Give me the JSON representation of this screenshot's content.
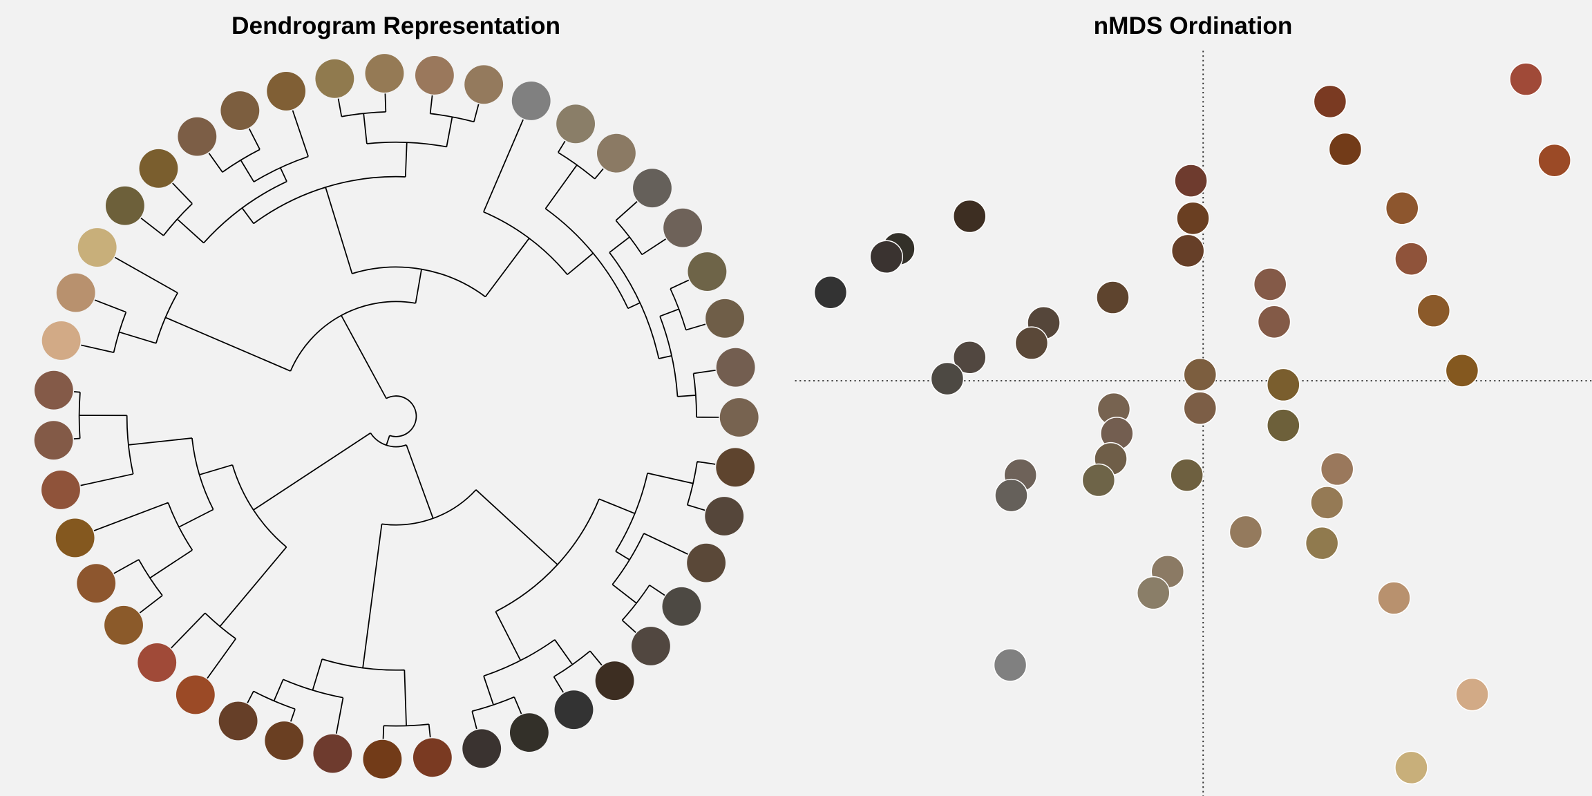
{
  "chart_data": [
    {
      "type": "dendrogram",
      "title": "Dendrogram Representation",
      "leaf_colors": [
        "#808080",
        "#8a7e68",
        "#8b7a64",
        "#65605a",
        "#6e6259",
        "#6e6448",
        "#6f5e48",
        "#735e50",
        "#776350",
        "#5e442e",
        "#55463a",
        "#5a4838",
        "#4d4943",
        "#514740",
        "#3d2e22",
        "#333333",
        "#333029",
        "#3a3330",
        "#7a3a22",
        "#723b18",
        "#6e3b2e",
        "#6a3f22",
        "#663f28",
        "#9b4a26",
        "#a04a38",
        "#8b5a2a",
        "#8d562e",
        "#84581f",
        "#8f533a",
        "#835a47",
        "#845a48",
        "#d2aa86",
        "#b8916e",
        "#c8af7a",
        "#6d603a",
        "#7a5e2e",
        "#7c5e46",
        "#7c5e3f",
        "#805f35",
        "#907a4e",
        "#957a55",
        "#9a785c",
        "#947a5d"
      ]
    },
    {
      "type": "scatter",
      "title": "nMDS Ordination",
      "x": [
        3.18,
        1.25,
        1.4,
        3.46,
        -0.12,
        -0.1,
        -0.15,
        1.96,
        2.05,
        2.27,
        2.55,
        -2.3,
        -3.0,
        -3.12,
        -3.67,
        -0.89,
        -1.57,
        -1.69,
        -2.3,
        -2.52,
        0.66,
        0.7,
        -0.03,
        -0.03,
        0.79,
        0.79,
        -0.88,
        -0.85,
        -0.91,
        -1.03,
        -0.16,
        -1.8,
        -1.89,
        1.32,
        1.22,
        1.17,
        0.42,
        -0.35,
        -0.49,
        -1.9,
        1.88,
        2.65,
        2.05
      ],
      "y": [
        2.97,
        2.75,
        2.28,
        2.17,
        1.97,
        1.6,
        1.28,
        1.7,
        1.2,
        0.69,
        0.1,
        1.62,
        1.3,
        1.22,
        0.87,
        0.82,
        0.57,
        0.37,
        0.23,
        0.02,
        0.95,
        0.58,
        0.06,
        -0.27,
        -0.04,
        -0.44,
        -0.28,
        -0.52,
        -0.77,
        -0.98,
        -0.93,
        -0.93,
        -1.13,
        -0.87,
        -1.2,
        -1.6,
        -1.49,
        -1.88,
        -2.09,
        -2.8,
        -2.14,
        -3.09,
        -3.81
      ],
      "colors": [
        "#a04a38",
        "#7a3a22",
        "#723b18",
        "#9b4a26",
        "#6e3b2e",
        "#6a3f22",
        "#663f28",
        "#8d562e",
        "#8f533a",
        "#8b5a2a",
        "#84581f",
        "#3d2e22",
        "#333029",
        "#3a3330",
        "#333333",
        "#5e442e",
        "#55463a",
        "#5a4838",
        "#514740",
        "#4d4943",
        "#845a48",
        "#835a47",
        "#7c5e3f",
        "#7c5e46",
        "#7a5e2e",
        "#6d603a",
        "#776350",
        "#735e50",
        "#6f5e48",
        "#6e6448",
        "#6e6040",
        "#6e6259",
        "#65605a",
        "#9a785c",
        "#957a55",
        "#907a4e",
        "#947a5d",
        "#8b7a64",
        "#8a7e68",
        "#808080",
        "#b8916e",
        "#d2aa86",
        "#c8af7a"
      ],
      "xlim": [
        -4.02,
        3.83
      ],
      "ylim": [
        -4.09,
        3.25
      ],
      "reference_lines": {
        "x": 0,
        "y": 0
      }
    }
  ]
}
